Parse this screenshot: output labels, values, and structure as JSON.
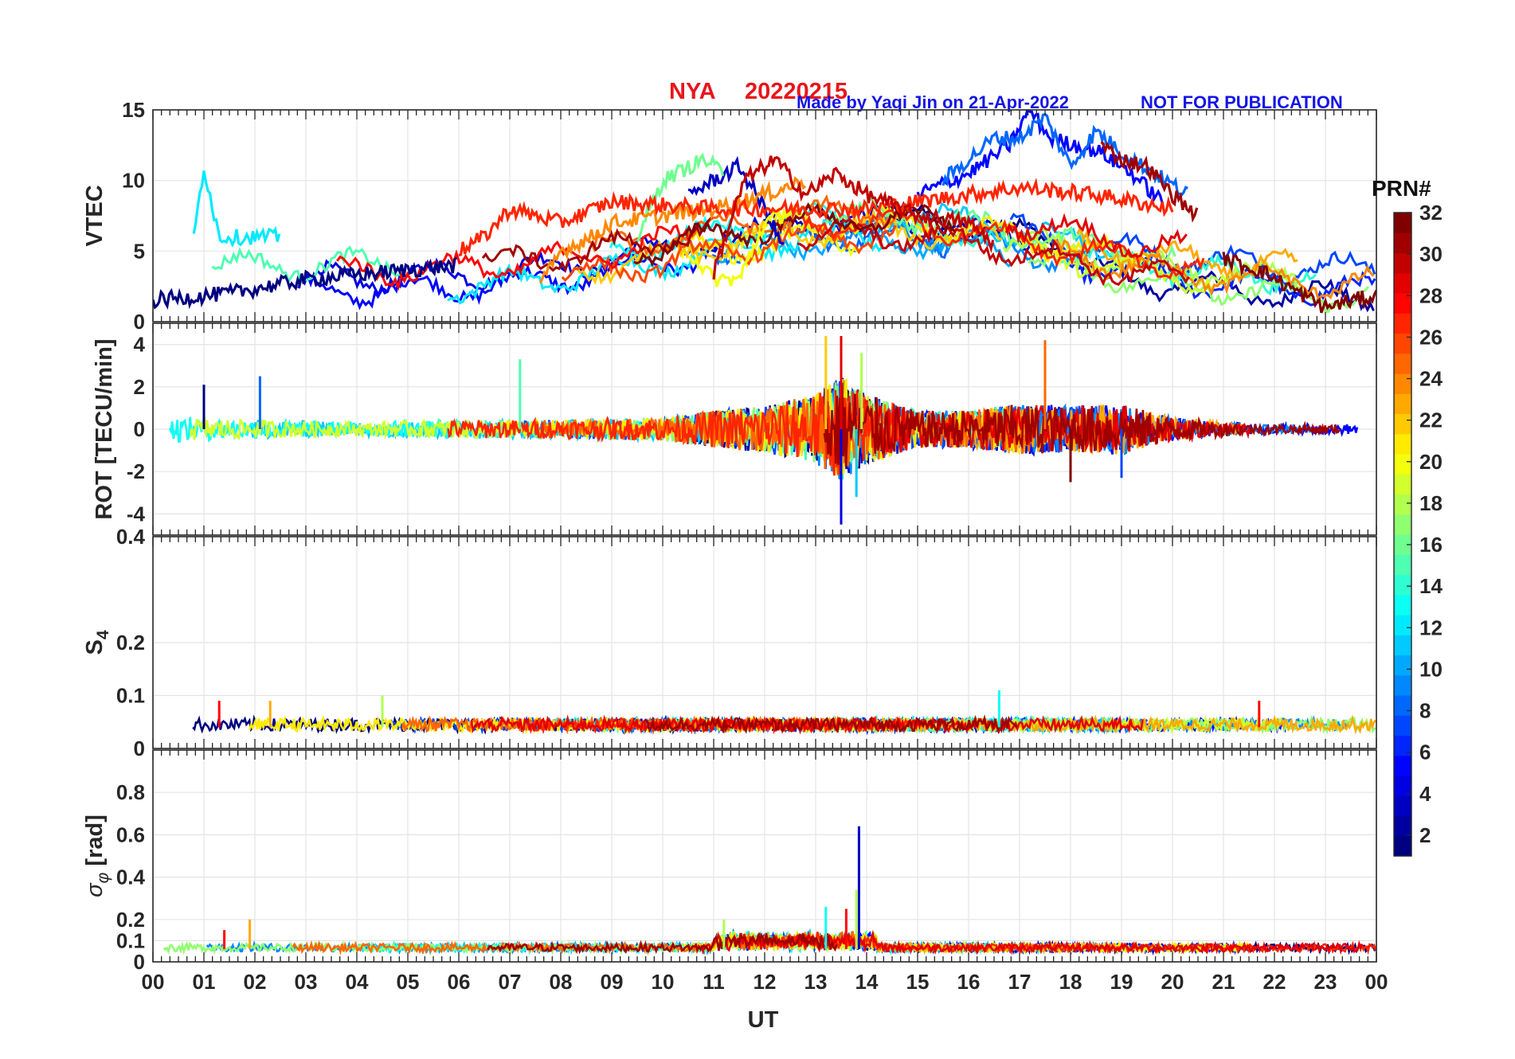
{
  "figure": {
    "station": "NYA",
    "date": "20220215",
    "credit": "Made by Yaqi Jin on 21-Apr-2022",
    "notice": "NOT FOR PUBLICATION",
    "xlabel": "UT",
    "colorbar_title": "PRN#",
    "colorbar_ticks": [
      "2",
      "4",
      "6",
      "8",
      "10",
      "12",
      "14",
      "16",
      "18",
      "20",
      "22",
      "24",
      "26",
      "28",
      "30",
      "32"
    ]
  },
  "chart_data": [
    {
      "type": "line",
      "panel": "vtec",
      "ylabel": "VTEC",
      "xlim": [
        0,
        24
      ],
      "ylim": [
        0,
        15
      ],
      "yticks": [
        0,
        5,
        10,
        15
      ],
      "grid": true,
      "xtick_labels": [
        "00",
        "01",
        "02",
        "03",
        "04",
        "05",
        "06",
        "07",
        "08",
        "09",
        "10",
        "11",
        "12",
        "13",
        "14",
        "15",
        "16",
        "17",
        "18",
        "19",
        "20",
        "21",
        "22",
        "23",
        "00"
      ],
      "series_note": "one trace per satellite PRN 1-32, colored by PRN",
      "series": [
        {
          "prn": 1,
          "x": [
            0.0,
            1.5,
            3.0,
            4.5,
            6.0
          ],
          "y": [
            1.5,
            2.0,
            3.0,
            3.5,
            4.0
          ]
        },
        {
          "prn": 3,
          "x": [
            10.5,
            11.5,
            12.0,
            12.4
          ],
          "y": [
            9.0,
            11.0,
            8.0,
            5.0
          ]
        },
        {
          "prn": 5,
          "x": [
            15.0,
            16.0,
            16.8,
            17.2,
            17.6,
            18.6,
            19.2,
            19.8
          ],
          "y": [
            9.0,
            10.5,
            12.5,
            15.0,
            13.0,
            12.0,
            10.5,
            8.5
          ]
        },
        {
          "prn": 8,
          "x": [
            15.5,
            16.5,
            17.0,
            17.5,
            18.0,
            18.5,
            19.0,
            20.3
          ],
          "y": [
            10.0,
            13.0,
            13.0,
            14.5,
            11.0,
            13.5,
            12.0,
            9.0
          ]
        },
        {
          "prn": 12,
          "x": [
            0.8,
            1.0,
            1.3,
            2.0,
            2.5
          ],
          "y": [
            6.0,
            11.0,
            6.0,
            6.0,
            6.0
          ]
        },
        {
          "prn": 16,
          "x": [
            9.5,
            10.0,
            10.8,
            11.2
          ],
          "y": [
            6.0,
            10.0,
            11.5,
            10.5
          ]
        },
        {
          "prn": 20,
          "x": [
            10.5,
            11.0,
            11.5,
            12.0,
            12.6
          ],
          "y": [
            5.0,
            3.0,
            3.0,
            7.0,
            8.0
          ]
        },
        {
          "prn": 24,
          "x": [
            7.6,
            8.0,
            8.6,
            9.0,
            10.0,
            11.0,
            12.0,
            12.8
          ],
          "y": [
            2.5,
            5.0,
            6.0,
            7.0,
            7.5,
            8.0,
            9.0,
            10.0
          ]
        },
        {
          "prn": 27,
          "x": [
            6.0,
            6.5,
            7.0,
            8.0,
            9.0,
            11.0,
            14.0,
            17.0,
            18.5,
            20.0
          ],
          "y": [
            5.0,
            6.0,
            8.0,
            7.0,
            8.5,
            8.0,
            8.0,
            9.5,
            9.0,
            8.0
          ]
        },
        {
          "prn": 30,
          "x": [
            11.0,
            11.6,
            12.2,
            12.8,
            13.4,
            14.0,
            15.0,
            16.0,
            16.5
          ],
          "y": [
            3.5,
            10.0,
            11.5,
            9.0,
            10.5,
            9.0,
            7.5,
            7.0,
            5.5
          ]
        },
        {
          "prn": 31,
          "x": [
            18.6,
            19.0,
            19.5,
            20.0,
            20.5
          ],
          "y": [
            12.5,
            11.5,
            11.0,
            9.0,
            7.5
          ]
        },
        {
          "prn": 32,
          "x": [
            21.0,
            21.8,
            22.5,
            23.0,
            23.5,
            24.0
          ],
          "y": [
            4.5,
            3.5,
            2.0,
            1.0,
            1.5,
            1.8
          ]
        }
      ]
    },
    {
      "type": "line",
      "panel": "rot",
      "ylabel": "ROT [TECU/min]",
      "xlim": [
        0,
        24
      ],
      "ylim": [
        -5,
        5
      ],
      "yticks": [
        -4,
        -2,
        0,
        2,
        4
      ],
      "grid": true,
      "series_note": "fluctuation amplitude envelope by UT hour",
      "envelope": {
        "x": [
          0,
          2,
          4,
          6,
          8,
          10,
          11,
          12,
          13,
          13.5,
          14,
          15,
          16,
          17,
          18,
          19,
          20,
          21,
          22,
          23,
          24
        ],
        "amplitude": [
          1.2,
          0.8,
          0.6,
          0.8,
          0.8,
          1.0,
          1.6,
          2.0,
          3.0,
          4.5,
          3.0,
          1.6,
          1.6,
          2.2,
          2.0,
          2.2,
          1.0,
          0.6,
          0.4,
          0.4,
          0.5
        ]
      },
      "spikes": [
        {
          "x": 1.0,
          "y": 2.1
        },
        {
          "x": 2.1,
          "y": 2.5
        },
        {
          "x": 7.2,
          "y": 3.3
        },
        {
          "x": 13.2,
          "y": 4.4
        },
        {
          "x": 13.5,
          "y": 4.4
        },
        {
          "x": 13.5,
          "y": -4.5
        },
        {
          "x": 13.8,
          "y": -3.2
        },
        {
          "x": 13.9,
          "y": 3.6
        },
        {
          "x": 17.5,
          "y": 4.2
        },
        {
          "x": 18.0,
          "y": -2.5
        },
        {
          "x": 19.0,
          "y": -2.3
        }
      ]
    },
    {
      "type": "line",
      "panel": "s4",
      "ylabel": "S4",
      "xlim": [
        0,
        24
      ],
      "ylim": [
        0,
        0.4
      ],
      "yticks": [
        0,
        0.1,
        0.2,
        0.4
      ],
      "ytick_labels": [
        "0",
        "0.1",
        "0.2",
        "0.4"
      ],
      "grid": true,
      "baseline": 0.04,
      "spikes": [
        {
          "x": 1.3,
          "y": 0.09
        },
        {
          "x": 2.3,
          "y": 0.09
        },
        {
          "x": 4.5,
          "y": 0.1
        },
        {
          "x": 16.6,
          "y": 0.11
        },
        {
          "x": 21.7,
          "y": 0.09
        }
      ]
    },
    {
      "type": "line",
      "panel": "sigma_phi",
      "ylabel": "σ_φ [rad]",
      "xlim": [
        0,
        24
      ],
      "ylim": [
        0,
        1.0
      ],
      "yticks": [
        0,
        0.1,
        0.2,
        0.4,
        0.6,
        0.8
      ],
      "ytick_labels": [
        "0",
        "0.1",
        "0.2",
        "0.4",
        "0.6",
        "0.8"
      ],
      "grid": true,
      "baseline": 0.06,
      "spikes": [
        {
          "x": 1.4,
          "y": 0.15
        },
        {
          "x": 1.9,
          "y": 0.2
        },
        {
          "x": 11.2,
          "y": 0.2
        },
        {
          "x": 13.2,
          "y": 0.26
        },
        {
          "x": 13.6,
          "y": 0.25
        },
        {
          "x": 13.85,
          "y": 0.64
        },
        {
          "x": 13.8,
          "y": 0.34
        }
      ]
    }
  ]
}
